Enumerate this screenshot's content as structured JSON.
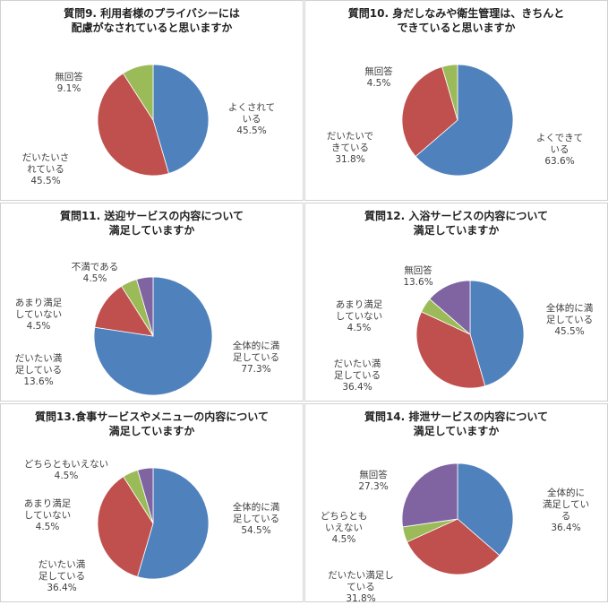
{
  "chart_data": [
    {
      "type": "pie",
      "title": "質問9. 利用者様のプライバシーには\n配慮がなされていると思いますか",
      "slices": [
        {
          "name": "よくされて\nいる",
          "pct": "45.5%",
          "value": 45.5,
          "color": "#4f81bd"
        },
        {
          "name": "だいたいさ\nれている",
          "pct": "45.5%",
          "value": 45.5,
          "color": "#c0504d"
        },
        {
          "name": "無回答",
          "pct": "9.1%",
          "value": 9.1,
          "color": "#9bbb59"
        }
      ]
    },
    {
      "type": "pie",
      "title": "質問10. 身だしなみや衛生管理は、きちんと\nできていると思いますか",
      "slices": [
        {
          "name": "よくできて\nいる",
          "pct": "63.6%",
          "value": 63.6,
          "color": "#4f81bd"
        },
        {
          "name": "だいたいで\nきている",
          "pct": "31.8%",
          "value": 31.8,
          "color": "#c0504d"
        },
        {
          "name": "無回答",
          "pct": "4.5%",
          "value": 4.5,
          "color": "#9bbb59"
        }
      ]
    },
    {
      "type": "pie",
      "title": "質問11. 送迎サービスの内容について\n満足していますか",
      "slices": [
        {
          "name": "全体的に満\n足している",
          "pct": "77.3%",
          "value": 77.3,
          "color": "#4f81bd"
        },
        {
          "name": "だいたい満\n足している",
          "pct": "13.6%",
          "value": 13.6,
          "color": "#c0504d"
        },
        {
          "name": "あまり満足\nしていない",
          "pct": "4.5%",
          "value": 4.5,
          "color": "#9bbb59"
        },
        {
          "name": "不満である",
          "pct": "4.5%",
          "value": 4.5,
          "color": "#8064a2"
        }
      ]
    },
    {
      "type": "pie",
      "title": "質問12. 入浴サービスの内容について\n満足していますか",
      "slices": [
        {
          "name": "全体的に満\n足している",
          "pct": "45.5%",
          "value": 45.5,
          "color": "#4f81bd"
        },
        {
          "name": "だいたい満\n足している",
          "pct": "36.4%",
          "value": 36.4,
          "color": "#c0504d"
        },
        {
          "name": "あまり満足\nしていない",
          "pct": "4.5%",
          "value": 4.5,
          "color": "#9bbb59"
        },
        {
          "name": "無回答",
          "pct": "13.6%",
          "value": 13.6,
          "color": "#8064a2"
        }
      ]
    },
    {
      "type": "pie",
      "title": "質問13.食事サービスやメニューの内容について\n満足していますか",
      "slices": [
        {
          "name": "全体的に満\n足している",
          "pct": "54.5%",
          "value": 54.5,
          "color": "#4f81bd"
        },
        {
          "name": "だいたい満\n足している",
          "pct": "36.4%",
          "value": 36.4,
          "color": "#c0504d"
        },
        {
          "name": "あまり満足\nしていない",
          "pct": "4.5%",
          "value": 4.5,
          "color": "#9bbb59"
        },
        {
          "name": "どちらともいえない",
          "pct": "4.5%",
          "value": 4.5,
          "color": "#8064a2"
        }
      ]
    },
    {
      "type": "pie",
      "title": "質問14. 排泄サービスの内容について\n満足していますか",
      "slices": [
        {
          "name": "全体的に\n満足してい\nる",
          "pct": "36.4%",
          "value": 36.4,
          "color": "#4f81bd"
        },
        {
          "name": "だいたい満足し\nている",
          "pct": "31.8%",
          "value": 31.8,
          "color": "#c0504d"
        },
        {
          "name": "どちらとも\nいえない",
          "pct": "4.5%",
          "value": 4.5,
          "color": "#9bbb59"
        },
        {
          "name": "無回答",
          "pct": "27.3%",
          "value": 27.3,
          "color": "#8064a2"
        }
      ]
    }
  ]
}
